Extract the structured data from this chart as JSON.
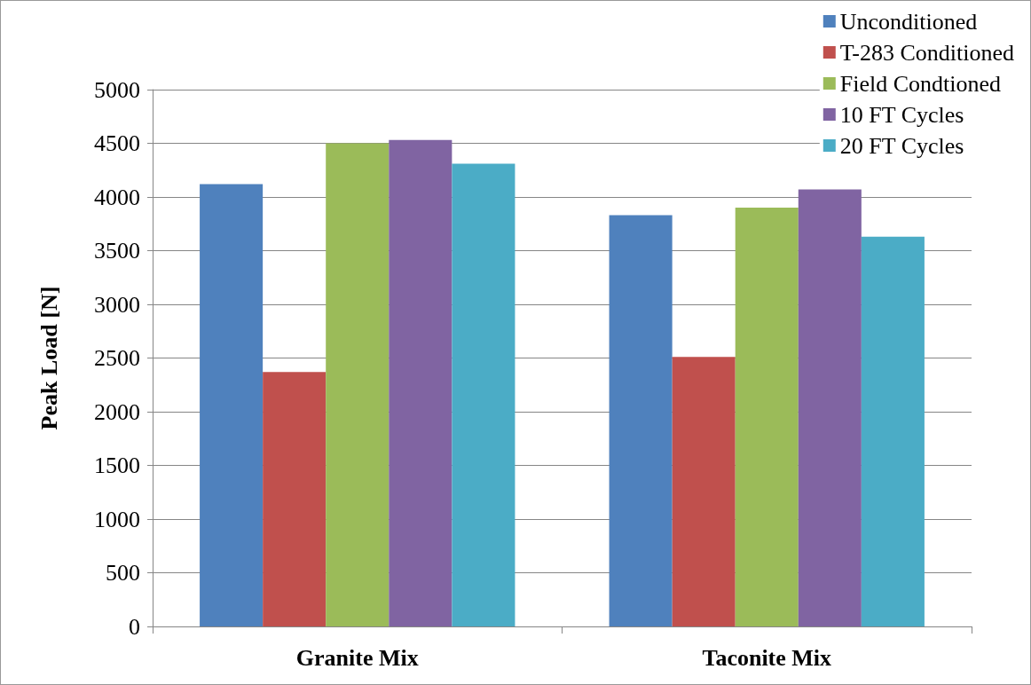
{
  "chart_data": {
    "type": "bar",
    "ylabel": "Peak Load [N]",
    "categories": [
      "Granite Mix",
      "Taconite Mix"
    ],
    "series": [
      {
        "name": "Unconditioned",
        "color": "#4f81bd",
        "values": [
          4120,
          3830
        ]
      },
      {
        "name": "T-283 Conditioned",
        "color": "#c0504d",
        "values": [
          2370,
          2510
        ]
      },
      {
        "name": "Field Condtioned",
        "color": "#9bbb59",
        "values": [
          4500,
          3900
        ]
      },
      {
        "name": "10 FT Cycles",
        "color": "#8064a2",
        "values": [
          4530,
          4070
        ]
      },
      {
        "name": "20 FT Cycles",
        "color": "#4bacc6",
        "values": [
          4310,
          3630
        ]
      }
    ],
    "ylim": [
      0,
      5000
    ],
    "yticks": [
      0,
      500,
      1000,
      1500,
      2000,
      2500,
      3000,
      3500,
      4000,
      4500,
      5000
    ],
    "grid": "y",
    "legend": "top right"
  }
}
